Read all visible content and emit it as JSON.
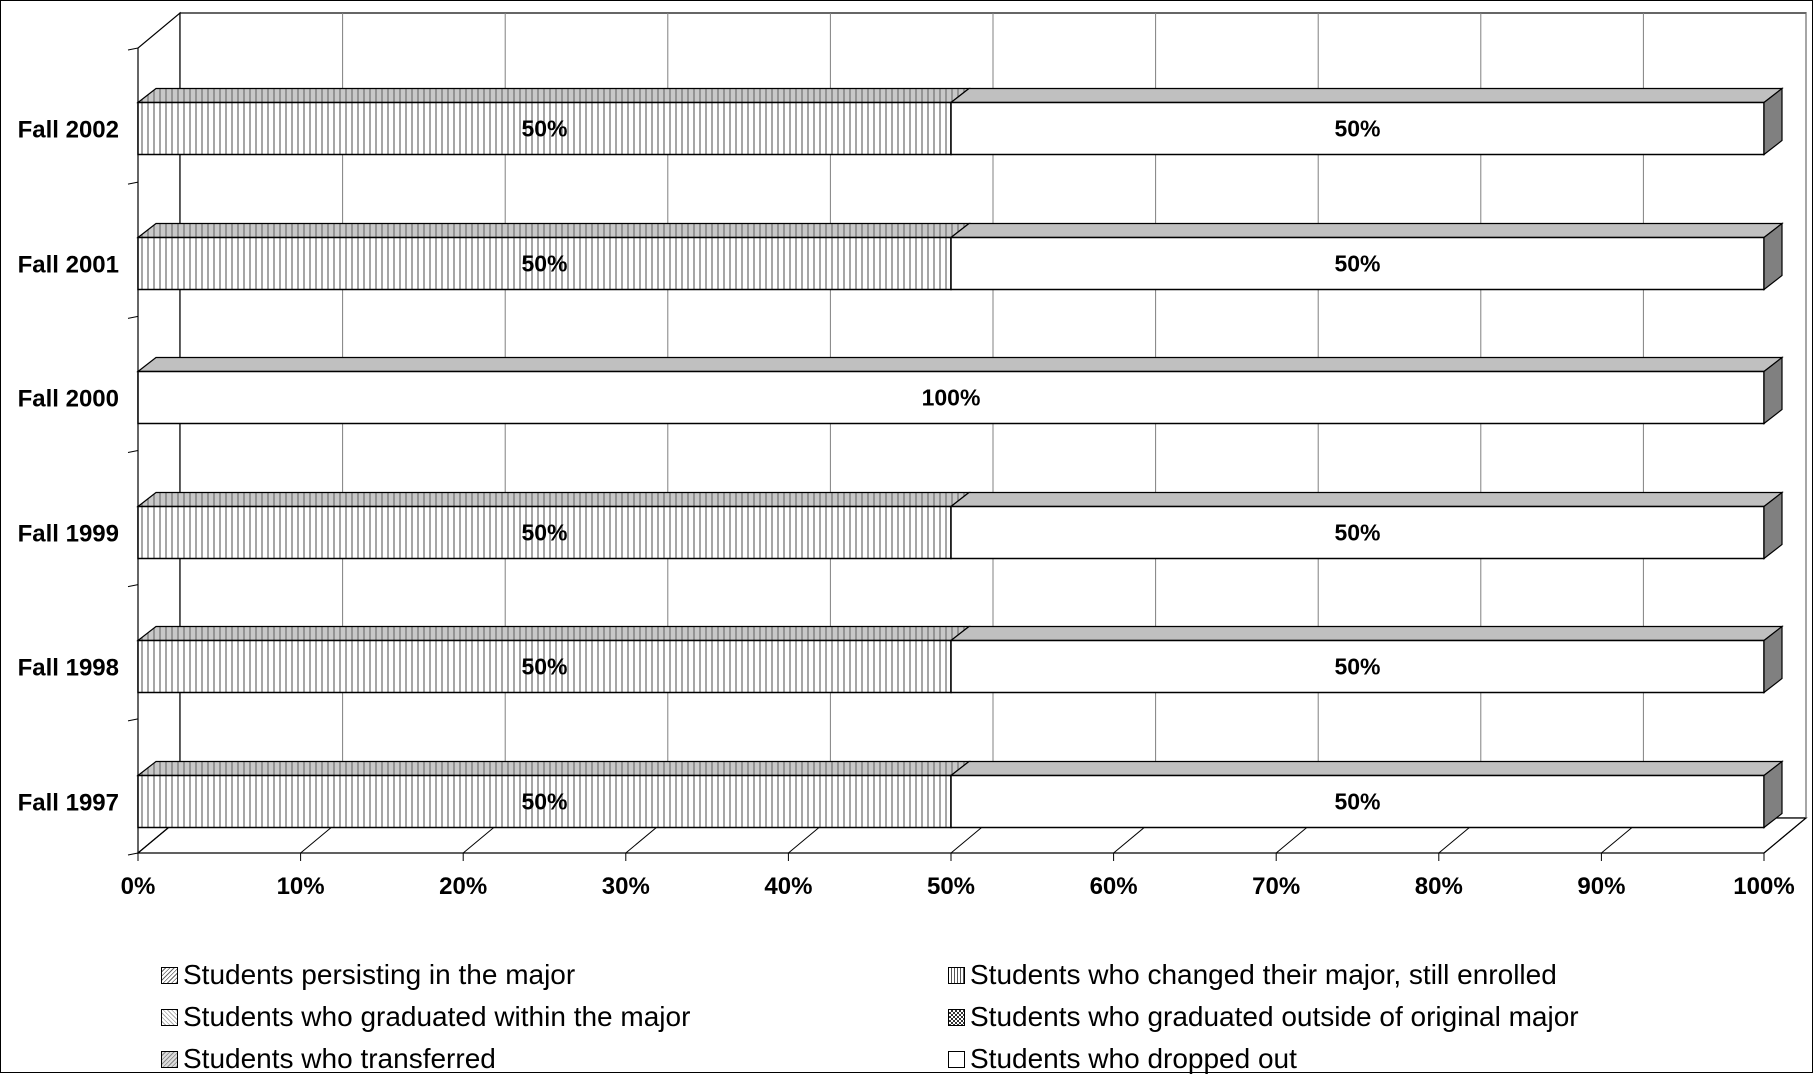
{
  "chart_data": {
    "type": "bar",
    "orientation": "horizontal",
    "stacked": "100%",
    "three_d": true,
    "categories": [
      "Fall 2002",
      "Fall 2001",
      "Fall 2000",
      "Fall 1999",
      "Fall 1998",
      "Fall 1997"
    ],
    "series": [
      {
        "name": "Students persisting in the major",
        "pattern": "diag",
        "values": [
          0,
          0,
          0,
          0,
          0,
          0
        ]
      },
      {
        "name": "Students who changed their major, still enrolled",
        "pattern": "vert",
        "values": [
          50,
          50,
          0,
          50,
          50,
          50
        ]
      },
      {
        "name": "Students who graduated within the major",
        "pattern": "light",
        "values": [
          0,
          0,
          0,
          0,
          0,
          0
        ]
      },
      {
        "name": "Students who graduated outside of original major",
        "pattern": "check",
        "values": [
          0,
          0,
          0,
          0,
          0,
          0
        ]
      },
      {
        "name": "Students who transferred",
        "pattern": "grey",
        "values": [
          0,
          0,
          0,
          0,
          0,
          0
        ]
      },
      {
        "name": "Students who dropped out",
        "pattern": "white",
        "values": [
          50,
          50,
          100,
          50,
          50,
          50
        ]
      }
    ],
    "data_labels": [
      [
        "50%",
        "50%"
      ],
      [
        "50%",
        "50%"
      ],
      [
        "100%"
      ],
      [
        "50%",
        "50%"
      ],
      [
        "50%",
        "50%"
      ],
      [
        "50%",
        "50%"
      ]
    ],
    "xlim": [
      0,
      100
    ],
    "x_ticks": [
      "0%",
      "10%",
      "20%",
      "30%",
      "40%",
      "50%",
      "60%",
      "70%",
      "80%",
      "90%",
      "100%"
    ],
    "title": "",
    "xlabel": "",
    "ylabel": "",
    "grid": true,
    "legend_position": "bottom",
    "colors": {
      "bar_face": "#ffffff",
      "bar_top": "#c0c0c0",
      "bar_side": "#808080",
      "grid": "#808080",
      "edge": "#000000"
    }
  },
  "legend": {
    "items": [
      {
        "label": "Students persisting in the major",
        "pattern": "diag"
      },
      {
        "label": "Students who changed their major, still enrolled",
        "pattern": "vert"
      },
      {
        "label": "Students who graduated within the major",
        "pattern": "light"
      },
      {
        "label": "Students who graduated outside of original major",
        "pattern": "check"
      },
      {
        "label": "Students who transferred",
        "pattern": "grey"
      },
      {
        "label": "Students who dropped out",
        "pattern": "white"
      }
    ]
  }
}
